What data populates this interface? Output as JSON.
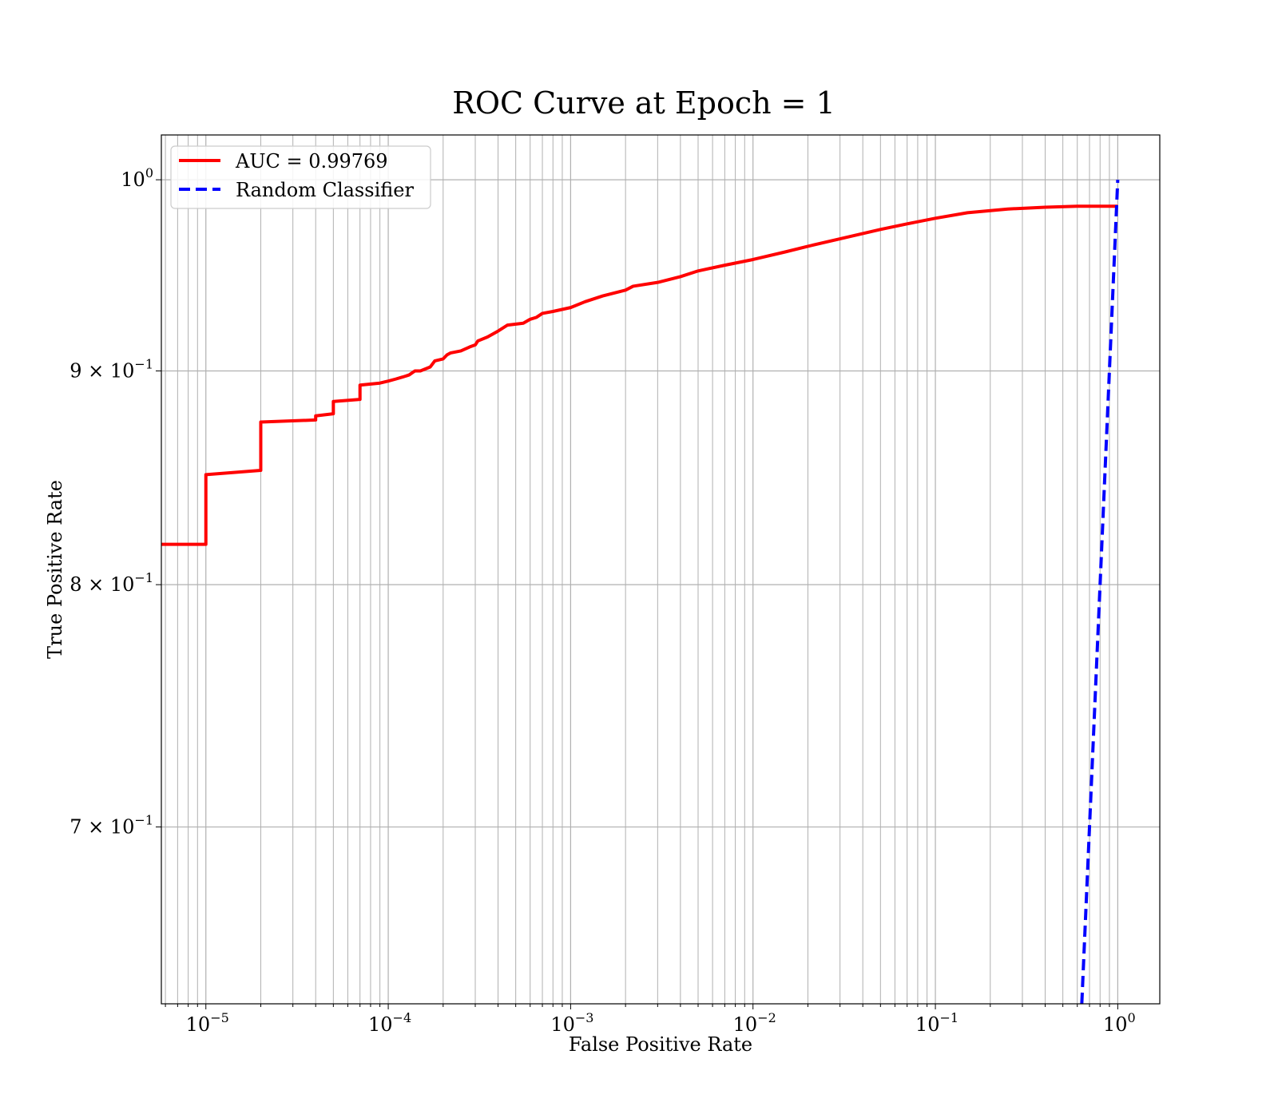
{
  "chart_data": {
    "type": "line",
    "title": "ROC Curve at Epoch = 1",
    "xlabel": "False Positive Rate",
    "ylabel": "True Positive Rate",
    "xscale": "log",
    "yscale": "log",
    "xlim": [
      5.7e-06,
      1.7
    ],
    "ylim": [
      0.635,
      1.025
    ],
    "grid": true,
    "legend_placement": "top-left",
    "x_ticks": [
      {
        "value": 1e-05,
        "base": "10",
        "exp": "−5"
      },
      {
        "value": 0.0001,
        "base": "10",
        "exp": "−4"
      },
      {
        "value": 0.001,
        "base": "10",
        "exp": "−3"
      },
      {
        "value": 0.01,
        "base": "10",
        "exp": "−2"
      },
      {
        "value": 0.1,
        "base": "10",
        "exp": "−1"
      },
      {
        "value": 1,
        "base": "10",
        "exp": "0"
      }
    ],
    "y_ticks": [
      {
        "value": 0.7,
        "base": "7 × 10",
        "exp": "−1"
      },
      {
        "value": 0.8,
        "base": "8 × 10",
        "exp": "−1"
      },
      {
        "value": 0.9,
        "base": "9 × 10",
        "exp": "−1"
      },
      {
        "value": 1.0,
        "base": "10",
        "exp": "0"
      }
    ],
    "series": [
      {
        "name": "AUC = 0.99769",
        "color": "#ff0000",
        "style": "solid",
        "points": [
          [
            5.7e-06,
            0.818
          ],
          [
            1e-05,
            0.818
          ],
          [
            1e-05,
            0.85
          ],
          [
            2e-05,
            0.852
          ],
          [
            2e-05,
            0.875
          ],
          [
            4e-05,
            0.876
          ],
          [
            4e-05,
            0.878
          ],
          [
            5e-05,
            0.879
          ],
          [
            5e-05,
            0.885
          ],
          [
            7e-05,
            0.886
          ],
          [
            7e-05,
            0.893
          ],
          [
            9e-05,
            0.894
          ],
          [
            0.0001,
            0.895
          ],
          [
            0.00011,
            0.896
          ],
          [
            0.00012,
            0.897
          ],
          [
            0.00013,
            0.898
          ],
          [
            0.00014,
            0.9
          ],
          [
            0.00015,
            0.9
          ],
          [
            0.00017,
            0.902
          ],
          [
            0.00018,
            0.905
          ],
          [
            0.0002,
            0.906
          ],
          [
            0.00021,
            0.908
          ],
          [
            0.00022,
            0.909
          ],
          [
            0.00025,
            0.91
          ],
          [
            0.00028,
            0.912
          ],
          [
            0.0003,
            0.913
          ],
          [
            0.00031,
            0.915
          ],
          [
            0.00035,
            0.917
          ],
          [
            0.0004,
            0.92
          ],
          [
            0.00045,
            0.923
          ],
          [
            0.00055,
            0.924
          ],
          [
            0.0006,
            0.926
          ],
          [
            0.00065,
            0.927
          ],
          [
            0.0007,
            0.929
          ],
          [
            0.0008,
            0.93
          ],
          [
            0.001,
            0.932
          ],
          [
            0.0012,
            0.935
          ],
          [
            0.0015,
            0.938
          ],
          [
            0.002,
            0.941
          ],
          [
            0.0022,
            0.943
          ],
          [
            0.003,
            0.945
          ],
          [
            0.004,
            0.948
          ],
          [
            0.005,
            0.951
          ],
          [
            0.007,
            0.954
          ],
          [
            0.01,
            0.957
          ],
          [
            0.015,
            0.961
          ],
          [
            0.02,
            0.964
          ],
          [
            0.03,
            0.968
          ],
          [
            0.05,
            0.973
          ],
          [
            0.07,
            0.976
          ],
          [
            0.1,
            0.979
          ],
          [
            0.15,
            0.982
          ],
          [
            0.25,
            0.984
          ],
          [
            0.4,
            0.985
          ],
          [
            0.6,
            0.9855
          ],
          [
            1.0,
            0.9855
          ]
        ]
      },
      {
        "name": "Random Classifier",
        "color": "#0000ff",
        "style": "dashed",
        "points": [
          [
            0.635,
            0.635
          ],
          [
            1.0,
            1.0
          ]
        ]
      }
    ]
  }
}
